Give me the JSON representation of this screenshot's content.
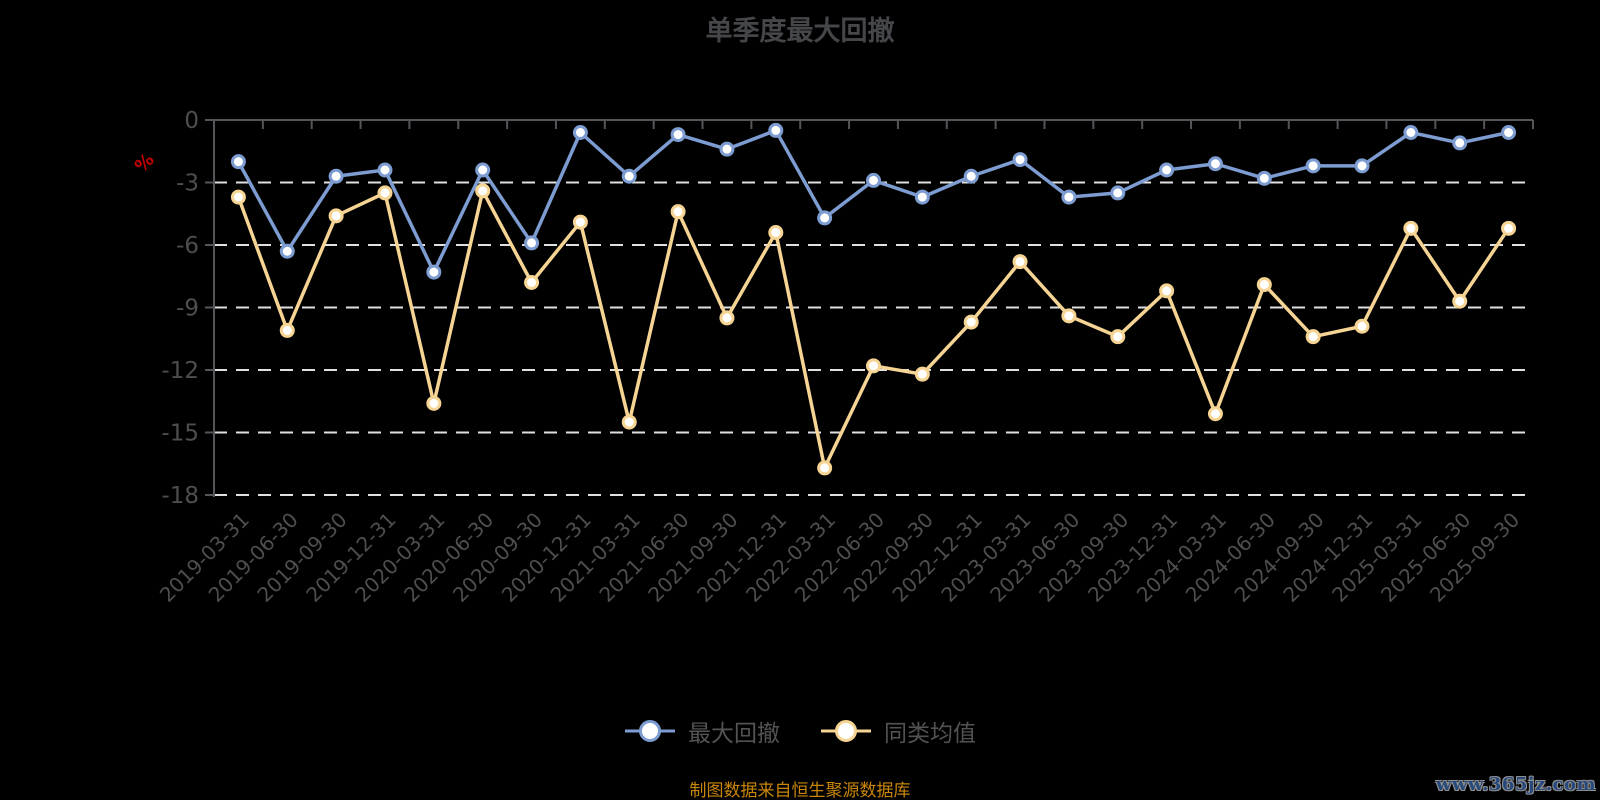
{
  "title": "单季度最大回撤",
  "y_unit": "%",
  "caption": "制图数据来自恒生聚源数据库",
  "watermark": "www.365jz.com",
  "colors": {
    "background": "#000000",
    "series_drawdown": "#7d9cd1",
    "series_average": "#f6d493",
    "marker_fill": "#ffffff",
    "gridline": "#e0e0e0",
    "axis_line": "#56565a",
    "axis_label": "#4e4e50",
    "title_text": "#45464a",
    "legend_text": "#535353",
    "unit_label": "#c40000",
    "caption_text": "#c8860a",
    "watermark_text": "#27497c"
  },
  "chart_data": {
    "type": "line",
    "title": "单季度最大回撤",
    "ylabel": "%",
    "ylim": [
      -18,
      0
    ],
    "yticks": [
      0,
      -3,
      -6,
      -9,
      -12,
      -15,
      -18
    ],
    "grid": true,
    "grid_style": "dashed",
    "legend_position": "bottom",
    "x_label_rotation": -45,
    "categories": [
      "2019-03-31",
      "2019-06-30",
      "2019-09-30",
      "2019-12-31",
      "2020-03-31",
      "2020-06-30",
      "2020-09-30",
      "2020-12-31",
      "2021-03-31",
      "2021-06-30",
      "2021-09-30",
      "2021-12-31",
      "2022-03-31",
      "2022-06-30",
      "2022-09-30",
      "2022-12-31",
      "2023-03-31",
      "2023-06-30",
      "2023-09-30",
      "2023-12-31",
      "2024-03-31",
      "2024-06-30",
      "2024-09-30",
      "2024-12-31",
      "2025-03-31",
      "2025-06-30",
      "2025-09-30"
    ],
    "series": [
      {
        "name": "最大回撤",
        "color": "#7d9cd1",
        "values": [
          -2.0,
          -6.3,
          -2.7,
          -2.4,
          -7.3,
          -2.4,
          -5.9,
          -0.6,
          -2.7,
          -0.7,
          -1.4,
          -0.5,
          -4.7,
          -2.9,
          -3.7,
          -2.7,
          -1.9,
          -3.7,
          -3.5,
          -2.4,
          -2.1,
          -2.8,
          -2.2,
          -2.2,
          -0.6,
          -1.1,
          -0.6
        ]
      },
      {
        "name": "同类均值",
        "color": "#f6d493",
        "values": [
          -3.7,
          -10.1,
          -4.6,
          -3.5,
          -13.6,
          -3.4,
          -7.8,
          -4.9,
          -14.5,
          -4.4,
          -9.5,
          -5.4,
          -16.7,
          -11.8,
          -12.2,
          -9.7,
          -6.8,
          -9.4,
          -10.4,
          -8.2,
          -14.1,
          -7.9,
          -10.4,
          -9.9,
          -5.2,
          -8.7,
          -5.2
        ]
      }
    ]
  }
}
